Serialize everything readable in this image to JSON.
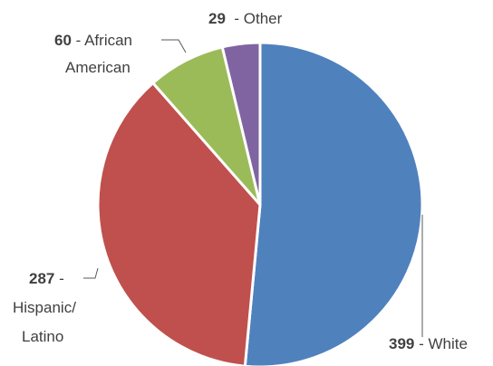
{
  "chart_data": {
    "type": "pie",
    "title": "",
    "slices": [
      {
        "value": 399,
        "label": "White",
        "color": "#4F81BD"
      },
      {
        "value": 287,
        "label": "Hispanic/ Latino",
        "color": "#C0504D"
      },
      {
        "value": 60,
        "label": "African American",
        "color": "#9BBB59"
      },
      {
        "value": 29,
        "label": "Other",
        "color": "#8064A2"
      }
    ],
    "legend": "none"
  },
  "labels": {
    "white": {
      "num": "399",
      "sep": " - ",
      "line1": "White"
    },
    "hispanic": {
      "num": "287",
      "sep": " -",
      "line1": "Hispanic/",
      "line2": "Latino"
    },
    "african": {
      "num": "60",
      "sep": " - ",
      "line1": "African",
      "line2": "American"
    },
    "other": {
      "num": "29",
      "sep": "  - ",
      "line1": "Other"
    }
  },
  "colors": {
    "leader": "#595959",
    "text": "#404040"
  }
}
